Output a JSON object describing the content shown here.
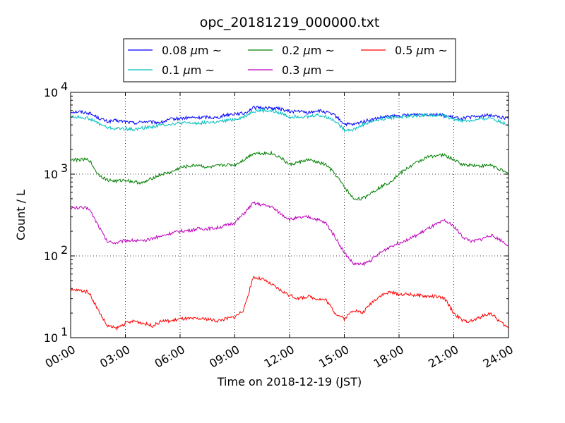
{
  "chart_data": {
    "type": "line",
    "title": "opc_20181219_000000.txt",
    "xlabel": "Time on 2018-12-19 (JST)",
    "ylabel": "Count / L",
    "y_scale": "log",
    "ylim": [
      10,
      10000
    ],
    "xlim": [
      "00:00",
      "24:00"
    ],
    "grid": true,
    "legend_position": "top-center",
    "x_ticks": [
      "00:00",
      "03:00",
      "06:00",
      "09:00",
      "12:00",
      "15:00",
      "18:00",
      "21:00",
      "24:00"
    ],
    "y_ticks": [
      {
        "value": 10,
        "base": "10",
        "exp": "1"
      },
      {
        "value": 100,
        "base": "10",
        "exp": "2"
      },
      {
        "value": 1000,
        "base": "10",
        "exp": "3"
      },
      {
        "value": 10000,
        "base": "10",
        "exp": "4"
      }
    ],
    "x": [
      "00:00",
      "00:30",
      "01:00",
      "01:30",
      "02:00",
      "02:30",
      "03:00",
      "03:30",
      "04:00",
      "04:30",
      "05:00",
      "05:30",
      "06:00",
      "06:30",
      "07:00",
      "07:30",
      "08:00",
      "08:30",
      "09:00",
      "09:30",
      "10:00",
      "10:30",
      "11:00",
      "11:30",
      "12:00",
      "12:30",
      "13:00",
      "13:30",
      "14:00",
      "14:30",
      "15:00",
      "15:30",
      "16:00",
      "16:30",
      "17:00",
      "17:30",
      "18:00",
      "18:30",
      "19:00",
      "19:30",
      "20:00",
      "20:30",
      "21:00",
      "21:30",
      "22:00",
      "22:30",
      "23:00",
      "23:30",
      "24:00"
    ],
    "series": [
      {
        "name": "0.08 μm ~",
        "name_parts": {
          "value": "0.08",
          "unit": "μm",
          "suffix": "~"
        },
        "color": "#0000ff",
        "values": [
          5800,
          5800,
          5600,
          4900,
          4400,
          4500,
          4400,
          4200,
          4400,
          4300,
          4300,
          4700,
          4800,
          4900,
          4900,
          5000,
          4900,
          5300,
          5500,
          5500,
          6500,
          6500,
          6400,
          6300,
          5800,
          5900,
          5600,
          6000,
          5700,
          5200,
          4100,
          4000,
          4400,
          4600,
          4900,
          5100,
          5100,
          5300,
          5400,
          5400,
          5400,
          5200,
          4900,
          4800,
          5000,
          5100,
          5300,
          5000,
          4800
        ]
      },
      {
        "name": "0.1 μm ~",
        "name_parts": {
          "value": "0.1",
          "unit": "μm",
          "suffix": "~"
        },
        "color": "#00bfbf",
        "values": [
          5000,
          5000,
          4800,
          4200,
          3700,
          3600,
          3600,
          3500,
          3700,
          3800,
          4000,
          4100,
          4200,
          4200,
          4200,
          4300,
          4300,
          4500,
          4700,
          5000,
          5900,
          6000,
          5900,
          5600,
          5000,
          5100,
          5000,
          5300,
          5000,
          4500,
          3500,
          3500,
          4000,
          4400,
          4700,
          4900,
          5000,
          5100,
          5200,
          5300,
          5300,
          5100,
          4700,
          4500,
          4500,
          4700,
          4900,
          4400,
          4000
        ]
      },
      {
        "name": "0.2 μm ~",
        "name_parts": {
          "value": "0.2",
          "unit": "μm",
          "suffix": "~"
        },
        "color": "#008000",
        "values": [
          1500,
          1500,
          1500,
          1000,
          850,
          820,
          850,
          800,
          780,
          900,
          1000,
          1050,
          1200,
          1250,
          1300,
          1200,
          1250,
          1300,
          1300,
          1500,
          1800,
          1800,
          1800,
          1600,
          1300,
          1400,
          1500,
          1400,
          1300,
          1000,
          700,
          500,
          500,
          600,
          700,
          800,
          1000,
          1200,
          1400,
          1600,
          1700,
          1700,
          1500,
          1300,
          1300,
          1250,
          1300,
          1150,
          1000
        ]
      },
      {
        "name": "0.3 μm ~",
        "name_parts": {
          "value": "0.3",
          "unit": "μm",
          "suffix": "~"
        },
        "color": "#bf00bf",
        "values": [
          380,
          390,
          380,
          240,
          150,
          145,
          155,
          155,
          150,
          165,
          175,
          190,
          200,
          205,
          215,
          215,
          220,
          235,
          255,
          330,
          440,
          420,
          400,
          330,
          280,
          290,
          300,
          280,
          250,
          170,
          110,
          80,
          78,
          90,
          110,
          130,
          145,
          160,
          180,
          210,
          240,
          270,
          230,
          170,
          150,
          160,
          180,
          160,
          135
        ]
      },
      {
        "name": "0.5 μm ~",
        "name_parts": {
          "value": "0.5",
          "unit": "μm",
          "suffix": "~"
        },
        "color": "#ff0000",
        "values": [
          38,
          38,
          36,
          22,
          14,
          13,
          15,
          16,
          15,
          14,
          16,
          16,
          17,
          17,
          17,
          17,
          16,
          17,
          18,
          22,
          55,
          52,
          45,
          38,
          33,
          30,
          32,
          30,
          29,
          20,
          17,
          22,
          20,
          27,
          33,
          36,
          34,
          34,
          33,
          32,
          32,
          30,
          20,
          16,
          16,
          18,
          20,
          16,
          13
        ]
      }
    ]
  }
}
